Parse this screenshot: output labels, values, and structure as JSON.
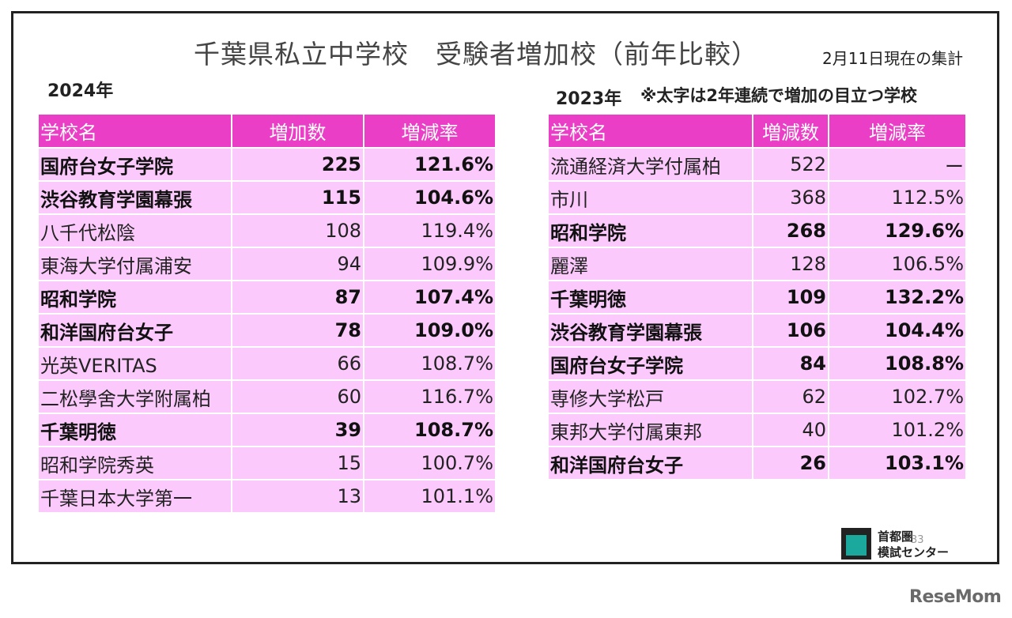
{
  "title": "千葉県私立中学校　受験者増加校（前年比較）",
  "date_note": "2月11日現在の集計",
  "left": {
    "year": "2024年",
    "headers": [
      "学校名",
      "増加数",
      "増減率"
    ],
    "rows": [
      {
        "name": "国府台女子学院",
        "num": "225",
        "rate": "121.6%",
        "bold": true
      },
      {
        "name": "渋谷教育学園幕張",
        "num": "115",
        "rate": "104.6%",
        "bold": true
      },
      {
        "name": "八千代松陰",
        "num": "108",
        "rate": "119.4%",
        "bold": false
      },
      {
        "name": "東海大学付属浦安",
        "num": "94",
        "rate": "109.9%",
        "bold": false
      },
      {
        "name": "昭和学院",
        "num": "87",
        "rate": "107.4%",
        "bold": true
      },
      {
        "name": "和洋国府台女子",
        "num": "78",
        "rate": "109.0%",
        "bold": true
      },
      {
        "name": "光英VERITAS",
        "num": "66",
        "rate": "108.7%",
        "bold": false
      },
      {
        "name": "二松學舍大学附属柏",
        "num": "60",
        "rate": "116.7%",
        "bold": false
      },
      {
        "name": "千葉明徳",
        "num": "39",
        "rate": "108.7%",
        "bold": true
      },
      {
        "name": "昭和学院秀英",
        "num": "15",
        "rate": "100.7%",
        "bold": false
      },
      {
        "name": "千葉日本大学第一",
        "num": "13",
        "rate": "101.1%",
        "bold": false
      }
    ]
  },
  "right": {
    "year": "2023年",
    "note": "※太字は2年連続で増加の目立つ学校",
    "headers": [
      "学校名",
      "増減数",
      "増減率"
    ],
    "rows": [
      {
        "name": "流通経済大学付属柏",
        "num": "522",
        "rate": "ー",
        "bold": false
      },
      {
        "name": "市川",
        "num": "368",
        "rate": "112.5%",
        "bold": false
      },
      {
        "name": "昭和学院",
        "num": "268",
        "rate": "129.6%",
        "bold": true
      },
      {
        "name": "麗澤",
        "num": "128",
        "rate": "106.5%",
        "bold": false
      },
      {
        "name": "千葉明徳",
        "num": "109",
        "rate": "132.2%",
        "bold": true
      },
      {
        "name": "渋谷教育学園幕張",
        "num": "106",
        "rate": "104.4%",
        "bold": true
      },
      {
        "name": "国府台女子学院",
        "num": "84",
        "rate": "108.8%",
        "bold": true
      },
      {
        "name": "専修大学松戸",
        "num": "62",
        "rate": "102.7%",
        "bold": false
      },
      {
        "name": "東邦大学付属東邦",
        "num": "40",
        "rate": "101.2%",
        "bold": false
      },
      {
        "name": "和洋国府台女子",
        "num": "26",
        "rate": "103.1%",
        "bold": true
      }
    ]
  },
  "logo": {
    "line1": "首都圏",
    "line2": "模試センター"
  },
  "page_number": "33",
  "watermark": "ReseMom",
  "colors": {
    "header_bg": "#ea3ec6",
    "row_bg": "#fcc9fc",
    "logo_accent": "#1aa99c"
  }
}
